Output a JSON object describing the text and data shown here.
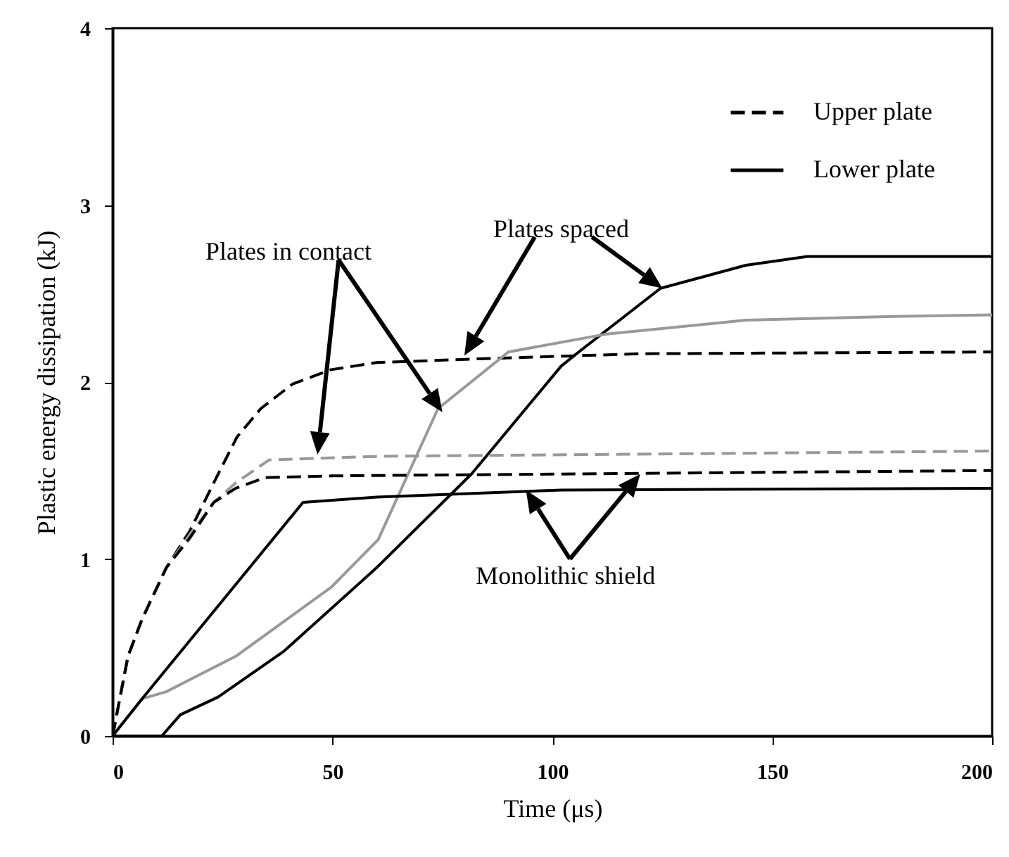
{
  "chart_data": {
    "type": "line",
    "xlabel": "Time (μs)",
    "ylabel": "Plastic energy dissipation (kJ)",
    "annotations": [
      "Plates spaced",
      "Plates in contact",
      {
        "text": "Monolithic shield",
        "x": 94,
        "y": 1.39
      }
    ],
    "xlim": [
      0,
      200
    ],
    "xticks": [
      0,
      50,
      100,
      150,
      200
    ],
    "ylim": [
      0,
      4
    ],
    "yticks": [
      0,
      1,
      2,
      3,
      4
    ],
    "grid": false,
    "legend": "top right",
    "series": [
      {
        "name": "Upper plate",
        "color": "#000000",
        "line_style": "dashed",
        "x": [
          0,
          3.5,
          6.7,
          12.2,
          17.6,
          24,
          28.3,
          33.7,
          41,
          49.7,
          60,
          81.6,
          120,
          200
        ],
        "values": [
          0,
          0.45,
          0.66,
          0.95,
          1.16,
          1.48,
          1.69,
          1.85,
          1.99,
          2.07,
          2.11,
          2.13,
          2.16,
          2.17
        ]
      },
      {
        "name": "Lower plate",
        "color": "#000000",
        "line_style": "solid",
        "x": [
          0,
          11.2,
          15.4,
          24,
          39,
          60,
          81.6,
          102,
          106,
          124.6,
          144,
          158,
          200
        ],
        "values": [
          0,
          0,
          0.12,
          0.22,
          0.48,
          0.95,
          1.48,
          2.09,
          2.17,
          2.53,
          2.66,
          2.71,
          2.71
        ]
      },
      {
        "color": "#999999",
        "line_style": "solid",
        "x": [
          0,
          6.7,
          12.2,
          28,
          49.7,
          60.4,
          74,
          90,
          112,
          144,
          176,
          200
        ],
        "values": [
          0,
          0.21,
          0.25,
          0.45,
          0.84,
          1.11,
          1.85,
          2.17,
          2.27,
          2.35,
          2.37,
          2.38
        ]
      },
      {
        "color": "#999999",
        "line_style": "dashed",
        "x": [
          0,
          3.5,
          6.7,
          12.2,
          17.6,
          23,
          28,
          35.6,
          60,
          200
        ],
        "values": [
          0,
          0.45,
          0.66,
          0.95,
          1.14,
          1.32,
          1.43,
          1.56,
          1.58,
          1.61
        ]
      },
      {
        "color": "#000000",
        "line_style": "dashed",
        "x": [
          0,
          3.5,
          6.7,
          12.2,
          17.6,
          23,
          28,
          34.7,
          50,
          200
        ],
        "values": [
          0,
          0.45,
          0.66,
          0.95,
          1.12,
          1.32,
          1.4,
          1.46,
          1.47,
          1.5
        ]
      },
      {
        "color": "#000000",
        "line_style": "solid",
        "x": [
          0,
          6.7,
          43.3,
          60,
          102,
          200
        ],
        "values": [
          0,
          0.21,
          1.32,
          1.35,
          1.39,
          1.4
        ]
      }
    ]
  }
}
